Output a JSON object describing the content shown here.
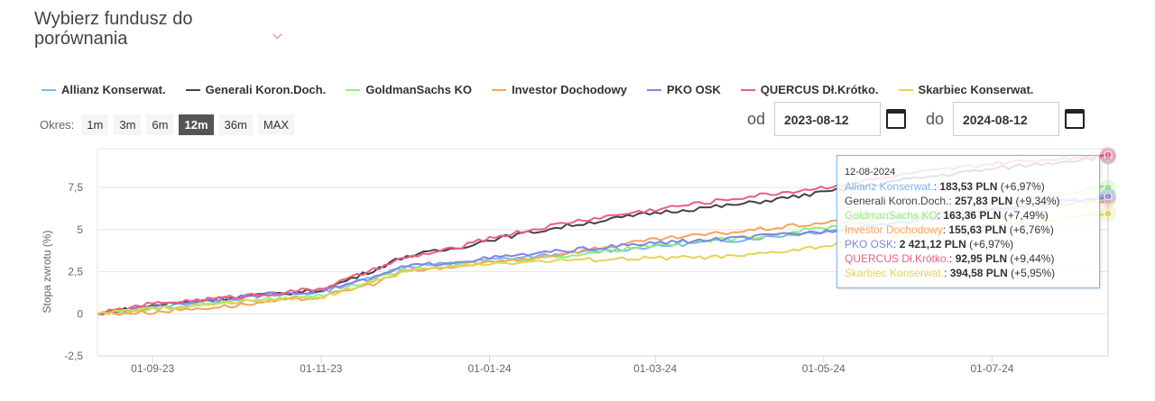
{
  "header": {
    "title": "Wybierz fundusz do porównania",
    "chevron_icon": "chevron-down-icon"
  },
  "periods": {
    "label": "Okres:",
    "options": [
      "1m",
      "3m",
      "6m",
      "12m",
      "36m",
      "MAX"
    ],
    "active": "12m"
  },
  "dates": {
    "from_label": "od",
    "from": "2023-08-12",
    "to_label": "do",
    "to": "2024-08-12"
  },
  "tooltip": {
    "date": "12-08-2024",
    "rows": [
      {
        "name": "Allianz Konserwat.",
        "value": "183,53 PLN",
        "change": "(+6,97%)"
      },
      {
        "name": "Generali Koron.Doch.",
        "value": "257,83 PLN",
        "change": "(+9,34%)"
      },
      {
        "name": "GoldmanSachs KO",
        "value": "163,36 PLN",
        "change": "(+7,49%)"
      },
      {
        "name": "Investor Dochodowy",
        "value": "155,63 PLN",
        "change": "(+6,76%)"
      },
      {
        "name": "PKO OSK",
        "value": "2 421,12 PLN",
        "change": "(+6,97%)"
      },
      {
        "name": "QUERCUS Dł.Krótko.",
        "value": "92,95 PLN",
        "change": "(+9,44%)"
      },
      {
        "name": "Skarbiec Konserwat.",
        "value": "394,58 PLN",
        "change": "(+5,95%)"
      }
    ]
  },
  "chart_data": {
    "type": "line",
    "ylabel": "Stopa zwrotu (%)",
    "ylim": [
      -2.5,
      9.8
    ],
    "yticks": [
      -2.5,
      0,
      2.5,
      5,
      7.5
    ],
    "ytick_labels": [
      "-2,5",
      "0",
      "2,5",
      "5",
      "7,5"
    ],
    "x_days_range": [
      0,
      366
    ],
    "xticks": [
      {
        "day": 20,
        "label": "01-09-23"
      },
      {
        "day": 81,
        "label": "01-11-23"
      },
      {
        "day": 142,
        "label": "01-01-24"
      },
      {
        "day": 202,
        "label": "01-03-24"
      },
      {
        "day": 263,
        "label": "01-05-24"
      },
      {
        "day": 324,
        "label": "01-07-24"
      }
    ],
    "x": [
      0,
      20,
      50,
      81,
      100,
      111,
      130,
      142,
      173,
      202,
      233,
      263,
      294,
      324,
      366
    ],
    "series": [
      {
        "name": "Allianz Konserwat.",
        "color": "#7cb5ec",
        "values": [
          0,
          0.4,
          0.9,
          1.3,
          2.2,
          2.8,
          3.0,
          3.2,
          3.6,
          4.0,
          4.4,
          4.9,
          5.5,
          6.1,
          6.97
        ]
      },
      {
        "name": "Generali Koron.Doch.",
        "color": "#434348",
        "values": [
          0,
          0.5,
          1.0,
          1.4,
          2.6,
          3.4,
          3.9,
          4.4,
          5.3,
          6.0,
          6.5,
          7.2,
          8.0,
          8.6,
          9.34
        ]
      },
      {
        "name": "GoldmanSachs KO",
        "color": "#90ed7d",
        "values": [
          0,
          0.3,
          0.7,
          1.1,
          2.0,
          2.6,
          2.9,
          3.1,
          3.5,
          4.1,
          4.5,
          5.1,
          5.8,
          6.5,
          7.49
        ]
      },
      {
        "name": "Investor Dochodowy",
        "color": "#f7a35c",
        "values": [
          0,
          0.1,
          0.5,
          1.0,
          1.8,
          2.5,
          2.8,
          3.0,
          3.7,
          4.4,
          4.9,
          5.4,
          5.8,
          6.2,
          6.76
        ]
      },
      {
        "name": "PKO OSK",
        "color": "#8085e9",
        "values": [
          0,
          0.5,
          1.0,
          1.4,
          2.1,
          2.8,
          3.1,
          3.3,
          3.8,
          4.2,
          4.5,
          4.9,
          5.5,
          6.2,
          6.97
        ]
      },
      {
        "name": "QUERCUS Dł.Krótko.",
        "color": "#f15c80",
        "values": [
          0,
          0.6,
          1.0,
          1.5,
          2.6,
          3.3,
          3.9,
          4.5,
          5.5,
          6.2,
          6.9,
          7.5,
          8.3,
          8.9,
          9.44
        ]
      },
      {
        "name": "Skarbiec Konserwat.",
        "color": "#e4d354",
        "values": [
          0,
          0.3,
          0.7,
          1.0,
          1.9,
          2.5,
          2.8,
          3.0,
          3.2,
          3.3,
          3.4,
          4.0,
          4.6,
          5.2,
          5.95
        ]
      }
    ]
  }
}
